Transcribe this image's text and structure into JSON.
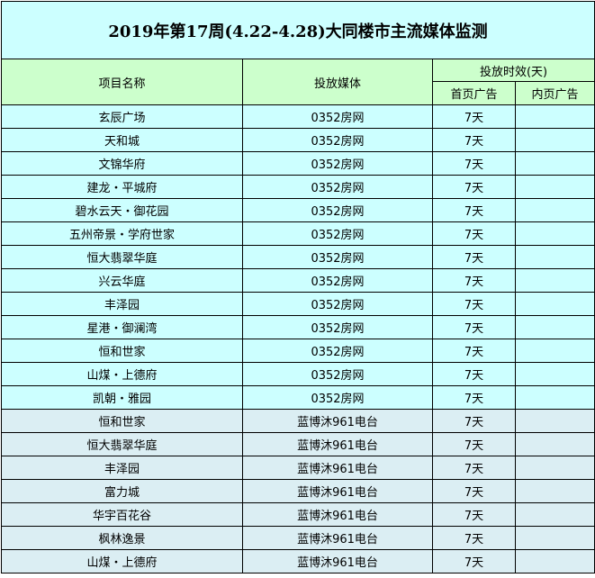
{
  "title": "2019年第17周(4.22-4.28)大同楼市主流媒体监测",
  "headers": {
    "project": "项目名称",
    "media": "投放媒体",
    "duration": "投放时效(天)",
    "home_ad": "首页广告",
    "inner_ad": "内页广告"
  },
  "rows": [
    {
      "project": "玄辰广场",
      "media": "0352房网",
      "home": "7天",
      "inner": ""
    },
    {
      "project": "天和城",
      "media": "0352房网",
      "home": "7天",
      "inner": ""
    },
    {
      "project": "文锦华府",
      "media": "0352房网",
      "home": "7天",
      "inner": ""
    },
    {
      "project": "建龙・平城府",
      "media": "0352房网",
      "home": "7天",
      "inner": ""
    },
    {
      "project": "碧水云天・御花园",
      "media": "0352房网",
      "home": "7天",
      "inner": ""
    },
    {
      "project": "五州帝景・学府世家",
      "media": "0352房网",
      "home": "7天",
      "inner": ""
    },
    {
      "project": "恒大翡翠华庭",
      "media": "0352房网",
      "home": "7天",
      "inner": ""
    },
    {
      "project": "兴云华庭",
      "media": "0352房网",
      "home": "7天",
      "inner": ""
    },
    {
      "project": "丰泽园",
      "media": "0352房网",
      "home": "7天",
      "inner": ""
    },
    {
      "project": "星港・御澜湾",
      "media": "0352房网",
      "home": "7天",
      "inner": ""
    },
    {
      "project": "恒和世家",
      "media": "0352房网",
      "home": "7天",
      "inner": ""
    },
    {
      "project": "山煤・上德府",
      "media": "0352房网",
      "home": "7天",
      "inner": ""
    },
    {
      "project": "凯朝・雅园",
      "media": "0352房网",
      "home": "7天",
      "inner": ""
    },
    {
      "project": "恒和世家",
      "media": "蓝博沐961电台",
      "home": "7天",
      "inner": ""
    },
    {
      "project": "恒大翡翠华庭",
      "media": "蓝博沐961电台",
      "home": "7天",
      "inner": ""
    },
    {
      "project": "丰泽园",
      "media": "蓝博沐961电台",
      "home": "7天",
      "inner": ""
    },
    {
      "project": "富力城",
      "media": "蓝博沐961电台",
      "home": "7天",
      "inner": ""
    },
    {
      "project": "华宇百花谷",
      "media": "蓝博沐961电台",
      "home": "7天",
      "inner": ""
    },
    {
      "project": "枫林逸景",
      "media": "蓝博沐961电台",
      "home": "7天",
      "inner": ""
    },
    {
      "project": "山煤・上德府",
      "media": "蓝博沐961电台",
      "home": "7天",
      "inner": ""
    }
  ],
  "colors": {
    "title_bg": "#ccffff",
    "header_bg": "#ccffcc",
    "web_rows_bg": "#ccffff",
    "radio_rows_bg": "#dbeef3"
  }
}
